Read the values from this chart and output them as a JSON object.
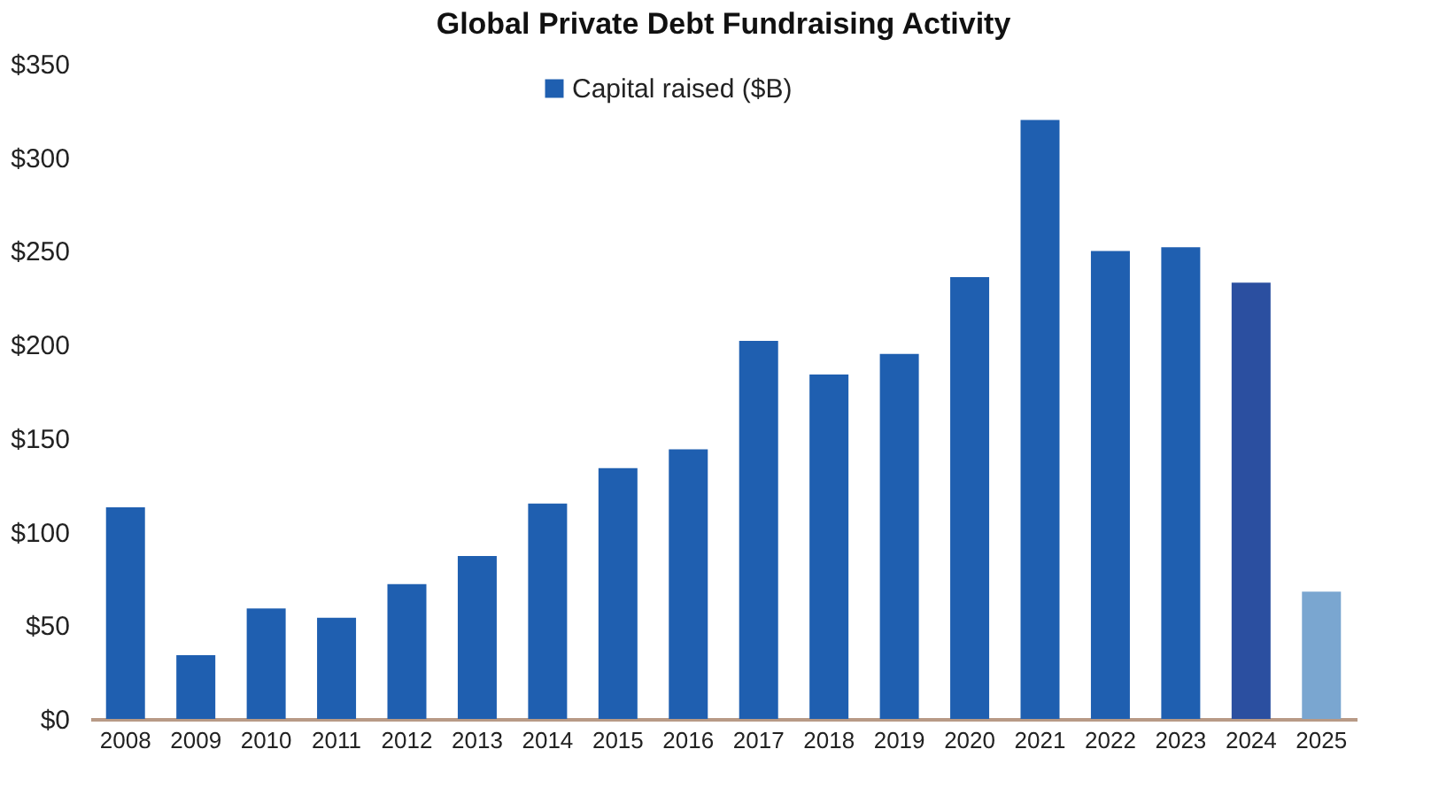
{
  "chart_data": {
    "type": "bar",
    "title": "Global Private Debt Fundraising Activity",
    "categories": [
      "2008",
      "2009",
      "2010",
      "2011",
      "2012",
      "2013",
      "2014",
      "2015",
      "2016",
      "2017",
      "2018",
      "2019",
      "2020",
      "2021",
      "2022",
      "2023",
      "2024",
      "2025"
    ],
    "series": [
      {
        "name": "Capital raised ($B)",
        "color": "#1f5fb0",
        "colors": [
          "#1f5fb0",
          "#1f5fb0",
          "#1f5fb0",
          "#1f5fb0",
          "#1f5fb0",
          "#1f5fb0",
          "#1f5fb0",
          "#1f5fb0",
          "#1f5fb0",
          "#1f5fb0",
          "#1f5fb0",
          "#1f5fb0",
          "#1f5fb0",
          "#1f5fb0",
          "#1f5fb0",
          "#1f5fb0",
          "#2b4fa0",
          "#7aa6d0"
        ],
        "values": [
          113,
          34,
          59,
          54,
          72,
          87,
          115,
          134,
          144,
          202,
          184,
          195,
          236,
          320,
          250,
          252,
          233,
          68
        ]
      }
    ],
    "ylim": [
      0,
      350
    ],
    "yticks": [
      {
        "value": 0,
        "label": "$0"
      },
      {
        "value": 50,
        "label": "$50"
      },
      {
        "value": 100,
        "label": "$100"
      },
      {
        "value": 150,
        "label": "$150"
      },
      {
        "value": 200,
        "label": "$200"
      },
      {
        "value": 250,
        "label": "$250"
      },
      {
        "value": 300,
        "label": "$300"
      },
      {
        "value": 350,
        "label": "$350"
      }
    ],
    "grid": false,
    "legend": "top"
  }
}
